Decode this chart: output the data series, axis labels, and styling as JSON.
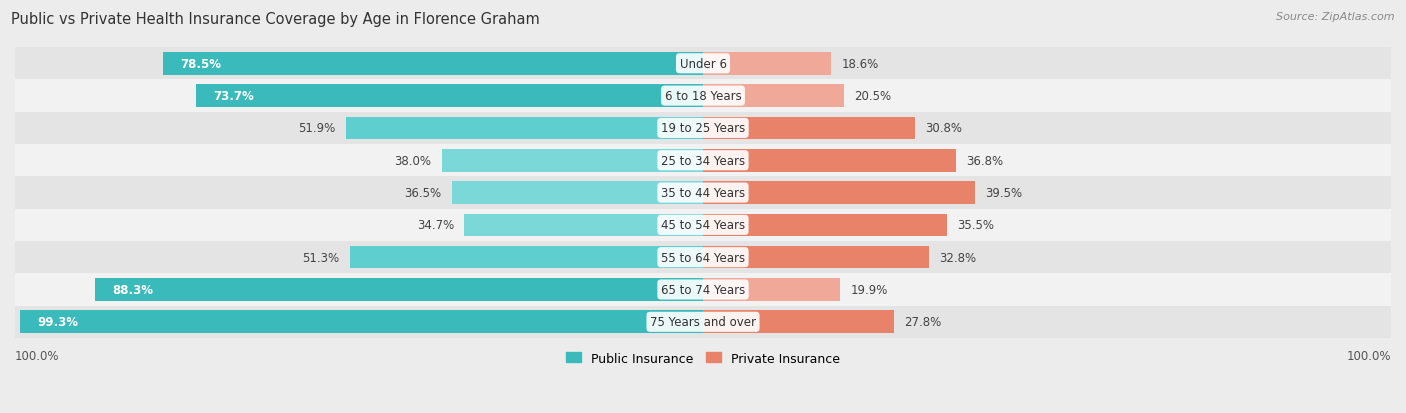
{
  "title": "Public vs Private Health Insurance Coverage by Age in Florence Graham",
  "source": "Source: ZipAtlas.com",
  "categories": [
    "Under 6",
    "6 to 18 Years",
    "19 to 25 Years",
    "25 to 34 Years",
    "35 to 44 Years",
    "45 to 54 Years",
    "55 to 64 Years",
    "65 to 74 Years",
    "75 Years and over"
  ],
  "public_values": [
    78.5,
    73.7,
    51.9,
    38.0,
    36.5,
    34.7,
    51.3,
    88.3,
    99.3
  ],
  "private_values": [
    18.6,
    20.5,
    30.8,
    36.8,
    39.5,
    35.5,
    32.8,
    19.9,
    27.8
  ],
  "public_colors": [
    "#3ABABA",
    "#3ABABA",
    "#5ECECE",
    "#7BD8D8",
    "#7BD8D8",
    "#7BD8D8",
    "#5ECECE",
    "#3ABABA",
    "#3ABABA"
  ],
  "private_colors": [
    "#F0A898",
    "#F0A898",
    "#E8836A",
    "#E8836A",
    "#E8836A",
    "#E8836A",
    "#E8836A",
    "#F0A898",
    "#E8836A"
  ],
  "max_value": 100.0,
  "bg_color": "#ececec",
  "row_bg_even": "#e4e4e4",
  "row_bg_odd": "#f2f2f2",
  "label_fontsize": 8.5,
  "title_fontsize": 10.5,
  "source_fontsize": 8,
  "legend_fontsize": 9,
  "white_label_threshold_pub": 55,
  "white_label_threshold_priv": 30
}
